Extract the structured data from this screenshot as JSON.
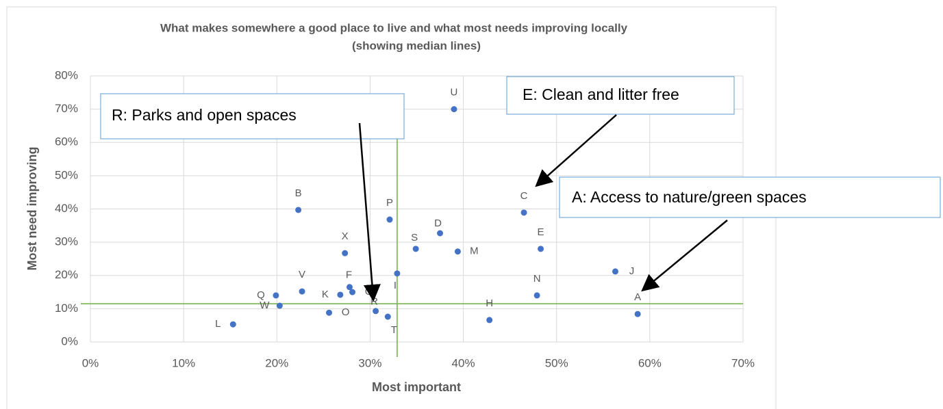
{
  "chart_data": {
    "type": "scatter",
    "title": "What makes somewhere a good place to live and what most needs improving locally",
    "subtitle": "(showing median lines)",
    "x_label": "Most important",
    "y_label": "Most need improving",
    "color": "#4472c4",
    "median_color": "#70ad47",
    "grid": true,
    "xlim": [
      0,
      70
    ],
    "ylim": [
      0,
      80
    ],
    "xticks": [
      {
        "value": 0,
        "label": "0%"
      },
      {
        "value": 10,
        "label": "10%"
      },
      {
        "value": 20,
        "label": "20%"
      },
      {
        "value": 30,
        "label": "30%"
      },
      {
        "value": 40,
        "label": "40%"
      },
      {
        "value": 50,
        "label": "50%"
      },
      {
        "value": 60,
        "label": "60%"
      },
      {
        "value": 70,
        "label": "70%"
      }
    ],
    "yticks": [
      {
        "value": 0,
        "label": "0%"
      },
      {
        "value": 10,
        "label": "10%"
      },
      {
        "value": 20,
        "label": "20%"
      },
      {
        "value": 30,
        "label": "30%"
      },
      {
        "value": 40,
        "label": "40%"
      },
      {
        "value": 50,
        "label": "50%"
      },
      {
        "value": 60,
        "label": "60%"
      },
      {
        "value": 70,
        "label": "70%"
      },
      {
        "value": 80,
        "label": "80%"
      }
    ],
    "median_x": 32.9,
    "median_y": 11.5,
    "labels": [
      "U",
      "B",
      "P",
      "C",
      "D",
      "S",
      "M",
      "E",
      "X",
      "J",
      "I",
      "Q",
      "V",
      "K",
      "F",
      "G",
      "N",
      "A",
      "W",
      "O",
      "R",
      "T",
      "H",
      "L"
    ],
    "x": [
      39.0,
      22.3,
      32.1,
      46.5,
      37.5,
      34.9,
      39.4,
      48.3,
      27.3,
      56.3,
      32.9,
      19.9,
      22.7,
      26.8,
      27.8,
      28.1,
      47.9,
      58.7,
      20.3,
      25.6,
      30.6,
      31.9,
      42.8,
      15.3
    ],
    "y": [
      70.0,
      39.7,
      36.8,
      38.9,
      32.7,
      28.0,
      27.2,
      28.0,
      26.7,
      21.2,
      20.6,
      14.0,
      15.2,
      14.2,
      16.5,
      15.0,
      14.0,
      8.4,
      10.9,
      8.8,
      9.3,
      7.6,
      6.6,
      5.3
    ],
    "annotations": [
      "R: Parks and open spaces",
      "E: Clean and litter free",
      "A: Access to nature/green spaces"
    ]
  }
}
